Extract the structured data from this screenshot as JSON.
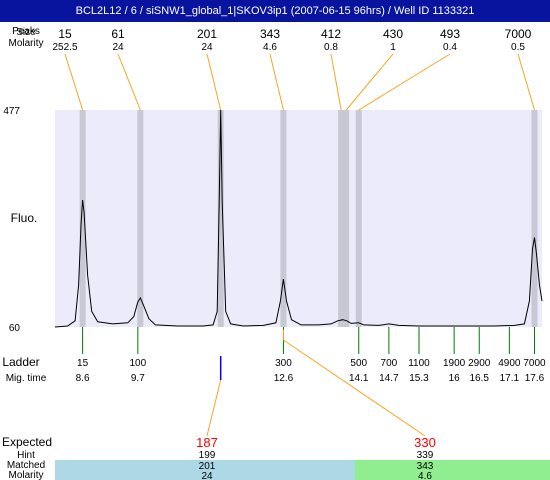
{
  "title": "BCL2L12 / 6 / siSNW1_global_1|SKOV3ip1 (2007-06-15 96hrs) / Well ID 1133321",
  "labels": {
    "peaks": "Peaks",
    "size": "Size",
    "molarity": "Molarity",
    "fluo": "Fluo.",
    "ladder": "Ladder",
    "mig_time": "Mig. time",
    "expected": "Expected",
    "hint": "Hint",
    "matched": "Matched",
    "molarity_bottom": "Molarity"
  },
  "colors": {
    "title_bar": "#08149e",
    "plot_bg": "#ebebfa",
    "peak_band": "#c8c8d4",
    "trace": "#000000",
    "callout_line": "#f5a623",
    "ladder_tick": "#007a00",
    "expected_text": "#ff0000",
    "match_left": "#add8e6",
    "match_right": "#90ee90"
  },
  "chart_data": {
    "type": "line",
    "ylabel": "Fluo.",
    "ylim": [
      60,
      477
    ],
    "y_ticks": [
      "477",
      "60"
    ],
    "peaks": [
      {
        "size": "15",
        "molarity": "252.5",
        "mig_time": 8.6
      },
      {
        "size": "61",
        "molarity": "24",
        "mig_time": 9.75
      },
      {
        "size": "201",
        "molarity": "24",
        "mig_time": 11.35
      },
      {
        "size": "343",
        "molarity": "4.6",
        "mig_time": 12.6
      },
      {
        "size": "412",
        "molarity": "0.8",
        "mig_time": 13.75
      },
      {
        "size": "430",
        "molarity": "1",
        "mig_time": 13.85
      },
      {
        "size": "493",
        "molarity": "0.4",
        "mig_time": 14.1
      },
      {
        "size": "7000",
        "molarity": "0.5",
        "mig_time": 17.6
      }
    ],
    "ladder": [
      {
        "size": "15",
        "mig_time": "8.6"
      },
      {
        "size": "100",
        "mig_time": "9.7"
      },
      {
        "size": "300",
        "mig_time": "12.6"
      },
      {
        "size": "500",
        "mig_time": "14.1"
      },
      {
        "size": "700",
        "mig_time": "14.7"
      },
      {
        "size": "1100",
        "mig_time": "15.3"
      },
      {
        "size": "1900",
        "mig_time": "16"
      },
      {
        "size": "2900",
        "mig_time": "16.5"
      },
      {
        "size": "4900",
        "mig_time": "17.1"
      },
      {
        "size": "7000",
        "mig_time": "17.6"
      }
    ],
    "trace": [
      [
        8.05,
        60
      ],
      [
        8.3,
        62
      ],
      [
        8.45,
        72
      ],
      [
        8.52,
        140
      ],
      [
        8.57,
        260
      ],
      [
        8.6,
        304
      ],
      [
        8.63,
        280
      ],
      [
        8.7,
        160
      ],
      [
        8.78,
        90
      ],
      [
        8.9,
        70
      ],
      [
        9.2,
        66
      ],
      [
        9.5,
        68
      ],
      [
        9.62,
        80
      ],
      [
        9.7,
        108
      ],
      [
        9.75,
        116
      ],
      [
        9.82,
        100
      ],
      [
        9.92,
        76
      ],
      [
        10.05,
        64
      ],
      [
        10.5,
        62
      ],
      [
        11.0,
        62
      ],
      [
        11.2,
        64
      ],
      [
        11.28,
        90
      ],
      [
        11.32,
        300
      ],
      [
        11.35,
        477
      ],
      [
        11.38,
        300
      ],
      [
        11.45,
        90
      ],
      [
        11.55,
        66
      ],
      [
        11.8,
        62
      ],
      [
        12.2,
        63
      ],
      [
        12.45,
        68
      ],
      [
        12.54,
        110
      ],
      [
        12.6,
        152
      ],
      [
        12.66,
        110
      ],
      [
        12.76,
        74
      ],
      [
        12.95,
        64
      ],
      [
        13.3,
        64
      ],
      [
        13.55,
        66
      ],
      [
        13.68,
        72
      ],
      [
        13.78,
        74
      ],
      [
        13.86,
        72
      ],
      [
        13.95,
        67
      ],
      [
        14.1,
        68
      ],
      [
        14.2,
        64
      ],
      [
        14.5,
        63
      ],
      [
        14.7,
        66
      ],
      [
        14.9,
        63
      ],
      [
        15.3,
        62
      ],
      [
        15.8,
        62
      ],
      [
        16.3,
        62
      ],
      [
        16.8,
        62
      ],
      [
        17.2,
        63
      ],
      [
        17.4,
        66
      ],
      [
        17.5,
        110
      ],
      [
        17.56,
        210
      ],
      [
        17.6,
        232
      ],
      [
        17.64,
        200
      ],
      [
        17.7,
        140
      ],
      [
        17.75,
        110
      ]
    ]
  },
  "expected": [
    {
      "value": "187",
      "hint": "199",
      "matched": "201",
      "molarity": "24",
      "mig_time": 11.35
    },
    {
      "value": "330",
      "hint": "339",
      "matched": "343",
      "molarity": "4.6",
      "mig_time": 12.6
    }
  ]
}
